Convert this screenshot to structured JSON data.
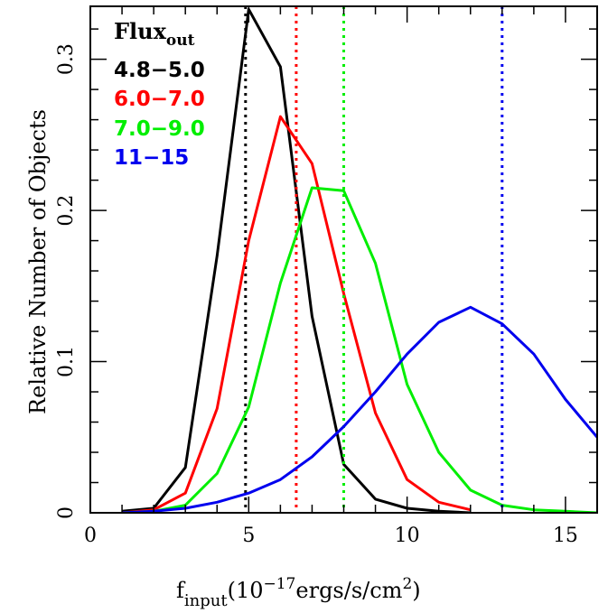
{
  "chart_data": {
    "type": "line",
    "xlabel": {
      "main": "f",
      "sub": "input",
      "pre": "(10",
      "sup": "−17",
      "mid": "ergs/s/cm",
      "sup2": "2",
      "post": ")"
    },
    "ylabel": "Relative Number of Objects",
    "xlim": [
      0,
      16
    ],
    "ylim": [
      0,
      0.335
    ],
    "xticks": [
      0,
      5,
      10,
      15
    ],
    "yticks": [
      0,
      0.1,
      0.2,
      0.3
    ],
    "xtick_labels": [
      "0",
      "5",
      "10",
      "15"
    ],
    "ytick_labels": [
      "0",
      "0.1",
      "0.2",
      "0.3"
    ],
    "legend": {
      "title_main": "Flux",
      "title_sub": "out",
      "placement": "top-left"
    },
    "series": [
      {
        "name": "4.8−5.0",
        "color": "#000000",
        "x": [
          1,
          2,
          3,
          4,
          5,
          6,
          7,
          8,
          9,
          10,
          11,
          12
        ],
        "y": [
          0.001,
          0.003,
          0.03,
          0.17,
          0.333,
          0.295,
          0.13,
          0.032,
          0.009,
          0.003,
          0.001,
          0.0
        ],
        "vline": 4.9
      },
      {
        "name": "6.0−7.0",
        "color": "#ff0000",
        "x": [
          1,
          2,
          3,
          4,
          5,
          6,
          7,
          8,
          9,
          10,
          11,
          12
        ],
        "y": [
          0.0,
          0.002,
          0.013,
          0.069,
          0.18,
          0.262,
          0.231,
          0.145,
          0.066,
          0.022,
          0.007,
          0.002
        ],
        "vline": 6.5
      },
      {
        "name": "7.0−9.0",
        "color": "#00ee00",
        "x": [
          1,
          2,
          3,
          4,
          5,
          6,
          7,
          8,
          9,
          10,
          11,
          12,
          13,
          14,
          15,
          16
        ],
        "y": [
          0.0,
          0.001,
          0.005,
          0.026,
          0.07,
          0.152,
          0.215,
          0.213,
          0.165,
          0.085,
          0.04,
          0.015,
          0.005,
          0.002,
          0.001,
          0.0
        ],
        "vline": 8.0
      },
      {
        "name": "11−15",
        "color": "#0000ee",
        "x": [
          1,
          2,
          3,
          4,
          5,
          6,
          7,
          8,
          9,
          10,
          11,
          12,
          13,
          14,
          15,
          16
        ],
        "y": [
          0.0,
          0.001,
          0.003,
          0.007,
          0.013,
          0.022,
          0.037,
          0.057,
          0.08,
          0.105,
          0.126,
          0.136,
          0.125,
          0.105,
          0.075,
          0.05
        ],
        "vline": 13.0
      }
    ]
  }
}
